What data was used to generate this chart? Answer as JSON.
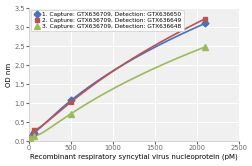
{
  "series": [
    {
      "label": "1. Capture: GTX636709, Detection: GTX636650",
      "x": [
        15.6,
        62.5,
        500,
        2100
      ],
      "y": [
        0.09,
        0.22,
        1.07,
        3.1
      ],
      "color": "#4472C4",
      "marker": "D",
      "markersize": 3.5,
      "linewidth": 1.2
    },
    {
      "label": "2. Capture: GTX636709, Detection: GTX636649",
      "x": [
        15.6,
        62.5,
        500,
        2100
      ],
      "y": [
        0.1,
        0.28,
        1.03,
        3.22
      ],
      "color": "#C0504D",
      "marker": "s",
      "markersize": 3.5,
      "linewidth": 1.2
    },
    {
      "label": "3. Capture: GTX636709, Detection: GTX636648",
      "x": [
        15.6,
        62.5,
        500,
        2100
      ],
      "y": [
        0.08,
        0.13,
        0.72,
        2.48
      ],
      "color": "#9BBB59",
      "marker": "^",
      "markersize": 4,
      "linewidth": 1.2
    }
  ],
  "xlabel": "Recombinant respiratory syncytial virus nucleoprotein (pM)",
  "ylabel": "OD nm",
  "xlim": [
    0,
    2500
  ],
  "ylim": [
    0,
    3.5
  ],
  "yticks": [
    0,
    0.5,
    1.0,
    1.5,
    2.0,
    2.5,
    3.0,
    3.5
  ],
  "xticks": [
    0,
    500,
    1000,
    1500,
    2000,
    2500
  ],
  "legend_fontsize": 4.2,
  "axis_fontsize": 5.0,
  "tick_fontsize": 4.8,
  "plot_bg_color": "#f0f0f0",
  "fig_bg_color": "#ffffff",
  "grid_color": "#ffffff",
  "spine_color": "#cccccc",
  "interp_points": 300
}
